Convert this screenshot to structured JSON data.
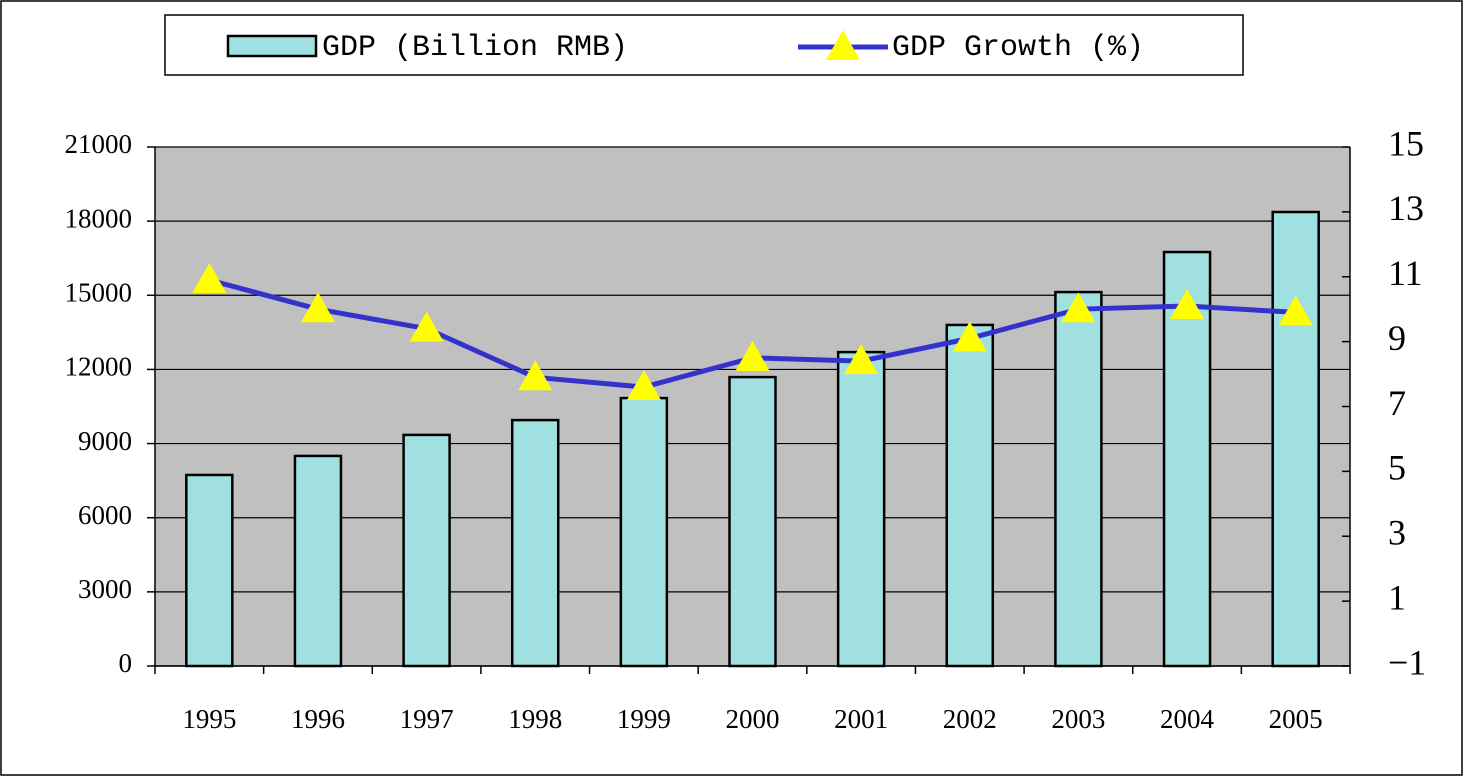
{
  "chart_data": {
    "type": "bar_line",
    "categories": [
      "1995",
      "1996",
      "1997",
      "1998",
      "1999",
      "2000",
      "2001",
      "2002",
      "2003",
      "2004",
      "2005"
    ],
    "series": [
      {
        "name": "GDP (Billion RMB)",
        "color": "#a0e0e0",
        "values": [
          7730,
          8500,
          9350,
          9950,
          10840,
          11690,
          12700,
          13800,
          15130,
          16750,
          18370
        ]
      },
      {
        "name": "GDP Growth (%)",
        "color": "#3333cc",
        "marker_color": "#ffff00",
        "axis": "y2",
        "values": [
          10.9,
          10.0,
          9.4,
          7.9,
          7.6,
          8.5,
          8.4,
          9.1,
          10.0,
          10.1,
          9.9
        ]
      }
    ],
    "ylim": [
      0,
      21000
    ],
    "yticks": [
      0,
      3000,
      6000,
      9000,
      12000,
      15000,
      18000,
      21000
    ],
    "y2lim": [
      -1,
      15
    ],
    "y2ticks": [
      {
        "value": -1,
        "label": "−1"
      },
      1,
      3,
      5,
      7,
      9,
      11,
      13,
      15
    ],
    "grid": true,
    "legend": "top"
  }
}
